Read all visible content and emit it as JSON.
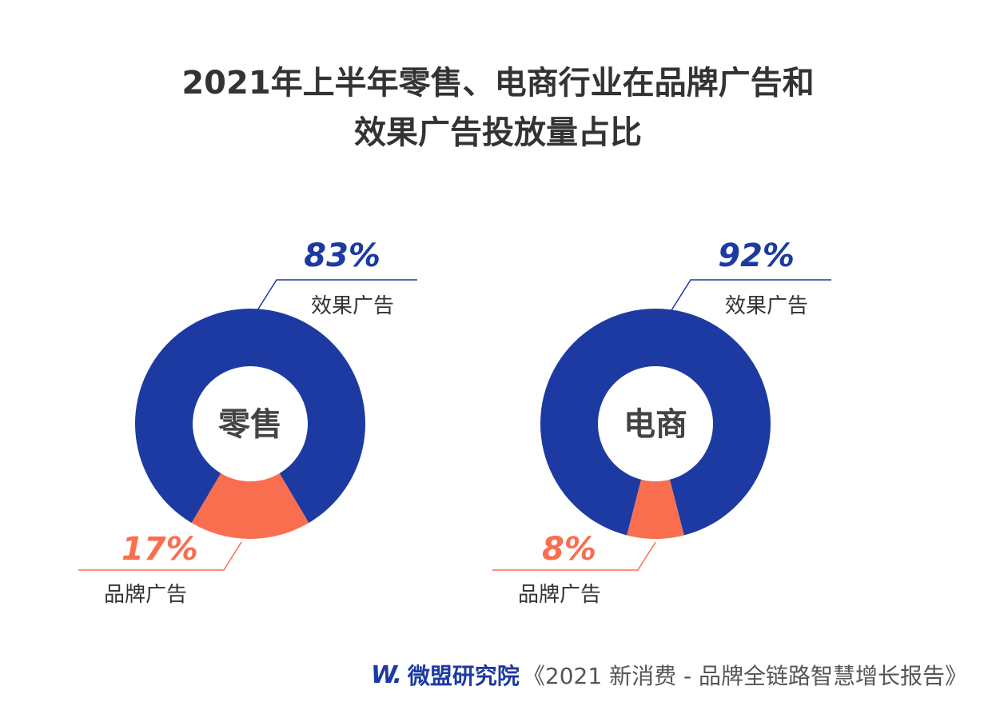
{
  "title": {
    "line1": "2021年上半年零售、电商行业在品牌广告和",
    "line2": "效果广告投放量占比"
  },
  "colors": {
    "effect": "#1c3aa2",
    "brand": "#fa6e50",
    "center_text": "#444444",
    "label_text": "#333333"
  },
  "chart_data": [
    {
      "type": "pie",
      "center_label": "零售",
      "slices": [
        {
          "name": "效果广告",
          "value": 83,
          "value_label": "83%"
        },
        {
          "name": "品牌广告",
          "value": 17,
          "value_label": "17%"
        }
      ]
    },
    {
      "type": "pie",
      "center_label": "电商",
      "slices": [
        {
          "name": "效果广告",
          "value": 92,
          "value_label": "92%"
        },
        {
          "name": "品牌广告",
          "value": 8,
          "value_label": "8%"
        }
      ]
    }
  ],
  "footer": {
    "logo_text": "W.",
    "brand_name": "微盟研究院",
    "source": "《2021 新消费 - 品牌全链路智慧增长报告》"
  }
}
